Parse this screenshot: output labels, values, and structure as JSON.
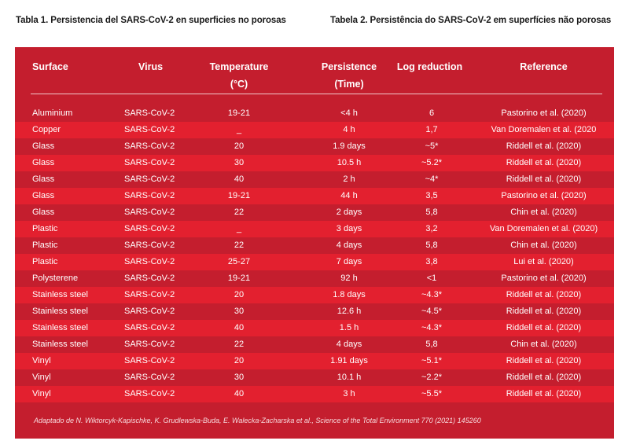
{
  "captions": {
    "left": "Tabla 1. Persistencia del SARS-CoV-2 en superficies no porosas",
    "right": "Tabela 2. Persistência do SARS-CoV-2 em superfícies não porosas"
  },
  "table": {
    "headers": {
      "surface": "Surface",
      "virus": "Virus",
      "temperature": "Temperature",
      "temperature_unit": "(°C)",
      "persistence": "Persistence",
      "persistence_unit": "(Time)",
      "log_reduction": "Log reduction",
      "reference": "Reference"
    },
    "rows": [
      {
        "surface": "Aluminium",
        "virus": "SARS-CoV-2",
        "temperature": "19-21",
        "persistence": "<4 h",
        "log": "6",
        "reference": "Pastorino et al. (2020)"
      },
      {
        "surface": "Copper",
        "virus": "SARS-CoV-2",
        "temperature": "_",
        "persistence": "4 h",
        "log": "1,7",
        "reference": "Van Doremalen et al. (2020"
      },
      {
        "surface": "Glass",
        "virus": "SARS-CoV-2",
        "temperature": "20",
        "persistence": "1.9 days",
        "log": "~5*",
        "reference": "Riddell et al. (2020)"
      },
      {
        "surface": "Glass",
        "virus": "SARS-CoV-2",
        "temperature": "30",
        "persistence": "10.5 h",
        "log": "~5.2*",
        "reference": "Riddell et al. (2020)"
      },
      {
        "surface": "Glass",
        "virus": "SARS-CoV-2",
        "temperature": "40",
        "persistence": "2 h",
        "log": "~4*",
        "reference": "Riddell et al. (2020)"
      },
      {
        "surface": "Glass",
        "virus": "SARS-CoV-2",
        "temperature": "19-21",
        "persistence": "44 h",
        "log": "3,5",
        "reference": "Pastorino et al. (2020)"
      },
      {
        "surface": "Glass",
        "virus": "SARS-CoV-2",
        "temperature": "22",
        "persistence": "2 days",
        "log": "5,8",
        "reference": "Chin et al. (2020)"
      },
      {
        "surface": "Plastic",
        "virus": "SARS-CoV-2",
        "temperature": "_",
        "persistence": "3 days",
        "log": "3,2",
        "reference": "Van Doremalen et al. (2020)"
      },
      {
        "surface": "Plastic",
        "virus": "SARS-CoV-2",
        "temperature": "22",
        "persistence": "4 days",
        "log": "5,8",
        "reference": "Chin et al. (2020)"
      },
      {
        "surface": "Plastic",
        "virus": "SARS-CoV-2",
        "temperature": "25-27",
        "persistence": "7 days",
        "log": "3,8",
        "reference": "Lui et al. (2020)"
      },
      {
        "surface": "Polysterene",
        "virus": "SARS-CoV-2",
        "temperature": "19-21",
        "persistence": "92 h",
        "log": "<1",
        "reference": "Pastorino et al. (2020)"
      },
      {
        "surface": "Stainless steel",
        "virus": "SARS-CoV-2",
        "temperature": "20",
        "persistence": "1.8 days",
        "log": "~4.3*",
        "reference": "Riddell et al. (2020)"
      },
      {
        "surface": "Stainless steel",
        "virus": "SARS-CoV-2",
        "temperature": "30",
        "persistence": "12.6 h",
        "log": "~4.5*",
        "reference": "Riddell et al. (2020)"
      },
      {
        "surface": "Stainless steel",
        "virus": "SARS-CoV-2",
        "temperature": "40",
        "persistence": "1.5 h",
        "log": "~4.3*",
        "reference": "Riddell et al. (2020)"
      },
      {
        "surface": "Stainless steel",
        "virus": "SARS-CoV-2",
        "temperature": "22",
        "persistence": "4 days",
        "log": "5,8",
        "reference": "Chin et al. (2020)"
      },
      {
        "surface": "Vinyl",
        "virus": "SARS-CoV-2",
        "temperature": "20",
        "persistence": "1.91 days",
        "log": "~5.1*",
        "reference": "Riddell et al. (2020)"
      },
      {
        "surface": "Vinyl",
        "virus": "SARS-CoV-2",
        "temperature": "30",
        "persistence": "10.1 h",
        "log": "~2.2*",
        "reference": "Riddell et al. (2020)"
      },
      {
        "surface": "Vinyl",
        "virus": "SARS-CoV-2",
        "temperature": "40",
        "persistence": "3 h",
        "log": "~5.5*",
        "reference": "Riddell et al. (2020)"
      }
    ]
  },
  "footnote": "Adaptado de N. Wiktorcyk-Kapischke, K. Grudlewska-Buda, E. Walecka-Zacharska et al., Science of the Total Environment 770 (2021) 145260",
  "colors": {
    "panel": "#c41e2e",
    "row_bright": "#e3202f",
    "text": "#ffffff"
  }
}
